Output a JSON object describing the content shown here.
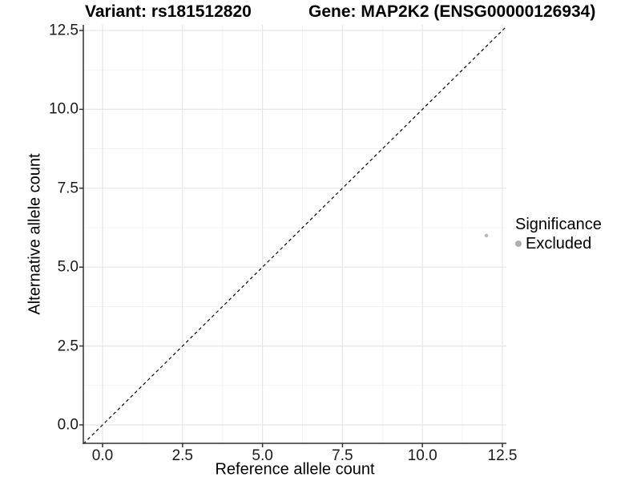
{
  "header": {
    "variant_title": "Variant: rs181512820",
    "gene_title": "Gene: MAP2K2 (ENSG00000126934)"
  },
  "chart_data": {
    "type": "scatter",
    "xlabel": "Reference allele count",
    "ylabel": "Alternative allele count",
    "x_tick_labels": [
      "0.0",
      "2.5",
      "5.0",
      "7.5",
      "10.0",
      "12.5"
    ],
    "y_tick_labels": [
      "0.0",
      "2.5",
      "5.0",
      "7.5",
      "10.0",
      "12.5"
    ],
    "tick_values": [
      0,
      2.5,
      5,
      7.5,
      10,
      12.5
    ],
    "minor_tick_values": [
      1.25,
      3.75,
      6.25,
      8.75,
      11.25
    ],
    "xlim": [
      -0.6,
      12.62
    ],
    "ylim": [
      -0.58,
      12.68
    ],
    "grid": "major-and-minor",
    "legend_position": "right",
    "identity_line": {
      "style": "dashed",
      "from": [
        -0.6,
        -0.6
      ],
      "to": [
        12.68,
        12.68
      ],
      "color": "#000000"
    },
    "series": [
      {
        "name": "Excluded",
        "points": [
          {
            "x": 12,
            "y": 6
          }
        ],
        "color": "#b9b9b9",
        "point_radius": 2.3
      }
    ],
    "colors": {
      "major_grid": "#e7e7e7",
      "minor_grid": "#f3f3f3",
      "axis_line": "#333333",
      "background": "#ffffff"
    }
  },
  "legend": {
    "title": "Significance",
    "items": [
      {
        "label": "Excluded",
        "color": "#adadad"
      }
    ]
  }
}
